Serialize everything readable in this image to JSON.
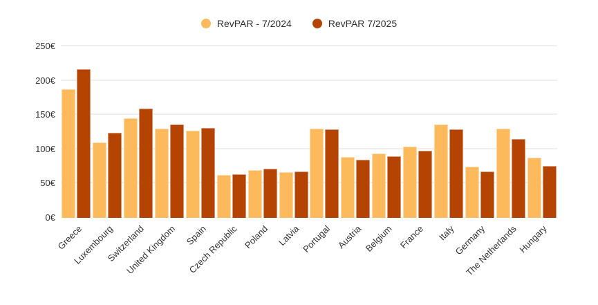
{
  "legend": [
    {
      "label": "RevPAR - 7/2024",
      "color": "#FDBA5C"
    },
    {
      "label": "RevPAR 7/2025",
      "color": "#B54301"
    }
  ],
  "chart_data": {
    "type": "bar",
    "title": "",
    "xlabel": "",
    "ylabel": "",
    "currency": "EUR",
    "categories": [
      "Greece",
      "Luxembourg",
      "Switzerland",
      "United Kingdom",
      "Spain",
      "Czech Republic",
      "Poland",
      "Latvia",
      "Portugal",
      "Austria",
      "Belgium",
      "France",
      "Italy",
      "Germany",
      "The Netherlands",
      "Hungary"
    ],
    "series": [
      {
        "name": "RevPAR - 7/2024",
        "color": "#FDBA5C",
        "values": [
          188,
          110,
          145,
          130,
          127,
          63,
          70,
          67,
          130,
          89,
          94,
          104,
          136,
          75,
          130,
          88
        ]
      },
      {
        "name": "RevPAR 7/2025",
        "color": "#B54301",
        "values": [
          217,
          124,
          159,
          136,
          131,
          64,
          72,
          68,
          129,
          85,
          90,
          98,
          129,
          68,
          115,
          76
        ]
      }
    ],
    "yticks": [
      "0€",
      "50€",
      "100€",
      "150€",
      "200€",
      "250€"
    ],
    "ytick_values": [
      0,
      50,
      100,
      150,
      200,
      250
    ],
    "ylim": [
      0,
      250
    ],
    "grid": true,
    "gridline_color": "#efefef",
    "legend_position": "top-center",
    "background_color": "#ffffff",
    "text_color": "#333333"
  }
}
